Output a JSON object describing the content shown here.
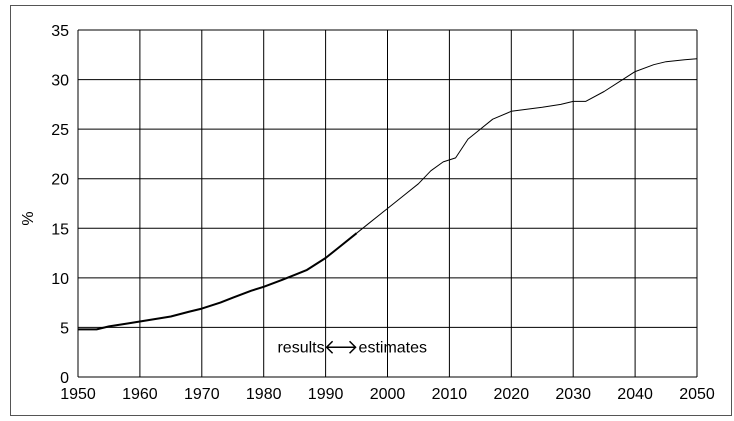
{
  "chart_data": {
    "type": "line",
    "title": "",
    "xlabel": "",
    "ylabel": "%",
    "xlim": [
      1950,
      2050
    ],
    "ylim": [
      0,
      35
    ],
    "grid": true,
    "legend": "none",
    "x_ticks": [
      "1950",
      "1960",
      "1970",
      "1980",
      "1990",
      "2000",
      "2010",
      "2020",
      "2030",
      "2040",
      "2050"
    ],
    "y_ticks": [
      "0",
      "5",
      "10",
      "15",
      "20",
      "25",
      "30",
      "35"
    ],
    "annotations": {
      "left_label": "results",
      "right_label": "estimates",
      "arrow_x": [
        1990,
        1995
      ],
      "arrow_y": 3
    },
    "series": [
      {
        "segment": "results",
        "x": [
          1950,
          1953,
          1955,
          1958,
          1960,
          1963,
          1965,
          1968,
          1970,
          1973,
          1975,
          1978,
          1980,
          1983,
          1985,
          1987,
          1990,
          1992,
          1995
        ],
        "y": [
          4.8,
          4.8,
          5.1,
          5.4,
          5.6,
          5.9,
          6.1,
          6.6,
          6.9,
          7.5,
          8.0,
          8.7,
          9.1,
          9.8,
          10.3,
          10.8,
          12.0,
          13.0,
          14.5
        ]
      },
      {
        "segment": "estimates",
        "x": [
          1995,
          1997,
          2000,
          2003,
          2005,
          2007,
          2009,
          2011,
          2013,
          2015,
          2017,
          2020,
          2025,
          2028,
          2030,
          2032,
          2035,
          2038,
          2040,
          2043,
          2045,
          2048,
          2050
        ],
        "y": [
          14.5,
          15.5,
          17.0,
          18.5,
          19.5,
          20.8,
          21.7,
          22.1,
          24.0,
          25.0,
          26.0,
          26.8,
          27.2,
          27.5,
          27.8,
          27.8,
          28.8,
          30.0,
          30.8,
          31.5,
          31.8,
          32.0,
          32.1
        ]
      }
    ]
  },
  "colors": {
    "grid": "#000000",
    "line": "#000000",
    "background": "#ffffff"
  }
}
